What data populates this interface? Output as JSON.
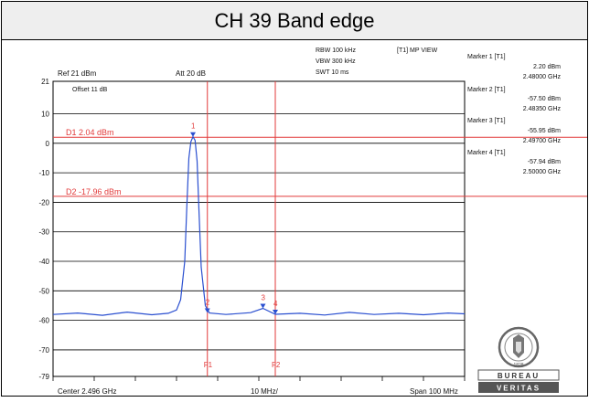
{
  "title": "CH 39 Band edge",
  "header_info": {
    "rbw": "RBW 100 kHz",
    "vbw": "VBW 300 kHz",
    "swt": "SWT 10 ms",
    "trace_mode": "[T1] MP VIEW",
    "ref": "Ref 21 dBm",
    "att": "Att  20 dB",
    "offset": "Offset 11 dB"
  },
  "markers": [
    {
      "label": "Marker 1 [T1]",
      "level": "2.20 dBm",
      "freq": "2.48000 GHz"
    },
    {
      "label": "Marker 2 [T1]",
      "level": "-57.50 dBm",
      "freq": "2.48350 GHz"
    },
    {
      "label": "Marker 3 [T1]",
      "level": "-55.95 dBm",
      "freq": "2.49700 GHz"
    },
    {
      "label": "Marker 4 [T1]",
      "level": "-57.94 dBm",
      "freq": "2.50000 GHz"
    }
  ],
  "footer": {
    "center": "Center 2.496 GHz",
    "per_div": "10 MHz/",
    "span": "Span 100 MHz"
  },
  "logo_text": {
    "top": "BUREAU",
    "bottom": "VERITAS",
    "year": "1828"
  },
  "colors": {
    "trace": "#2a4fd0",
    "limit_lines": "#e23a3a",
    "grid": "#000000"
  },
  "chart_data": {
    "type": "line",
    "xlim": [
      2.446,
      2.546
    ],
    "ylim": [
      -79,
      21
    ],
    "ytick_labels": [
      "21",
      "10",
      "0",
      "-10",
      "-20",
      "-30",
      "-40",
      "-50",
      "-60",
      "-70",
      "-79"
    ],
    "ytick_values": [
      21,
      10,
      0,
      -10,
      -20,
      -30,
      -40,
      -50,
      -60,
      -70,
      -79
    ],
    "hlines": [
      {
        "label": "D1 2.04 dBm",
        "y": 2.04
      },
      {
        "label": "D2 -17.96 dBm",
        "y": -17.96
      }
    ],
    "vlines": [
      {
        "label": "F1",
        "x": 2.4835
      },
      {
        "label": "F2",
        "x": 2.5
      }
    ],
    "marker_points": [
      {
        "name": "1",
        "x": 2.48,
        "y": 2.2
      },
      {
        "name": "2",
        "x": 2.4835,
        "y": -57.5
      },
      {
        "name": "3",
        "x": 2.497,
        "y": -55.95
      },
      {
        "name": "4",
        "x": 2.5,
        "y": -57.94
      }
    ],
    "series": [
      {
        "x": [
          2.446,
          2.452,
          2.458,
          2.464,
          2.47,
          2.474,
          2.476,
          2.477,
          2.478,
          2.4785,
          2.479,
          2.4795,
          2.48,
          2.4805,
          2.481,
          2.4815,
          2.482,
          2.483,
          2.484,
          2.488,
          2.494,
          2.497,
          2.5,
          2.506,
          2.512,
          2.518,
          2.524,
          2.53,
          2.536,
          2.542,
          2.546
        ],
        "y": [
          -58,
          -57.5,
          -58.3,
          -57.2,
          -58.1,
          -57.6,
          -56.5,
          -53,
          -40,
          -22,
          -5,
          0.5,
          2.2,
          1,
          -6,
          -24,
          -42,
          -55,
          -57.5,
          -58,
          -57.4,
          -55.95,
          -57.94,
          -57.6,
          -58.2,
          -57.3,
          -58,
          -57.6,
          -58.1,
          -57.5,
          -57.8
        ]
      }
    ]
  }
}
